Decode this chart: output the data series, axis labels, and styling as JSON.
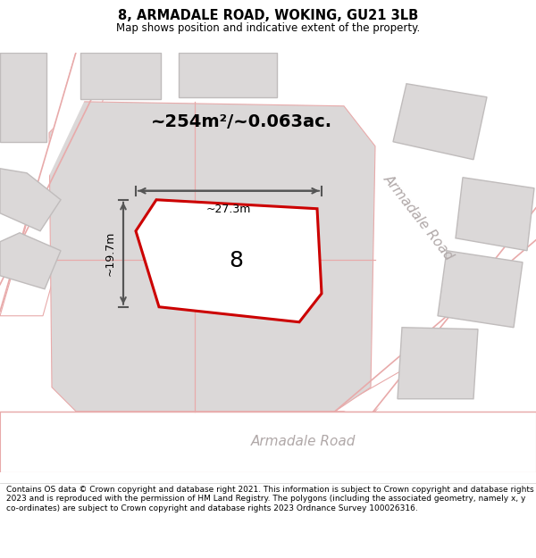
{
  "title": "8, ARMADALE ROAD, WOKING, GU21 3LB",
  "subtitle": "Map shows position and indicative extent of the property.",
  "footer": "Contains OS data © Crown copyright and database right 2021. This information is subject to Crown copyright and database rights 2023 and is reproduced with the permission of HM Land Registry. The polygons (including the associated geometry, namely x, y co-ordinates) are subject to Crown copyright and database rights 2023 Ordnance Survey 100026316.",
  "map_bg": "#f2efef",
  "block_color": "#dbd8d8",
  "road_fill": "#ffffff",
  "road_pink": "#e8aaaa",
  "highlight_color": "#cc0000",
  "dim_color": "#555555",
  "road_label_color": "#b0a8a8",
  "area_text": "~254m²/~0.063ac.",
  "property_label": "8",
  "dim_width": "~27.3m",
  "dim_height": "~19.7m",
  "road_label_diag": "Armadale Road",
  "road_label_bottom": "Armadale Road",
  "title_fontsize": 10.5,
  "subtitle_fontsize": 8.5,
  "footer_fontsize": 6.5,
  "area_fontsize": 14,
  "property_fontsize": 18,
  "dim_fontsize": 9,
  "road_fontsize": 11
}
